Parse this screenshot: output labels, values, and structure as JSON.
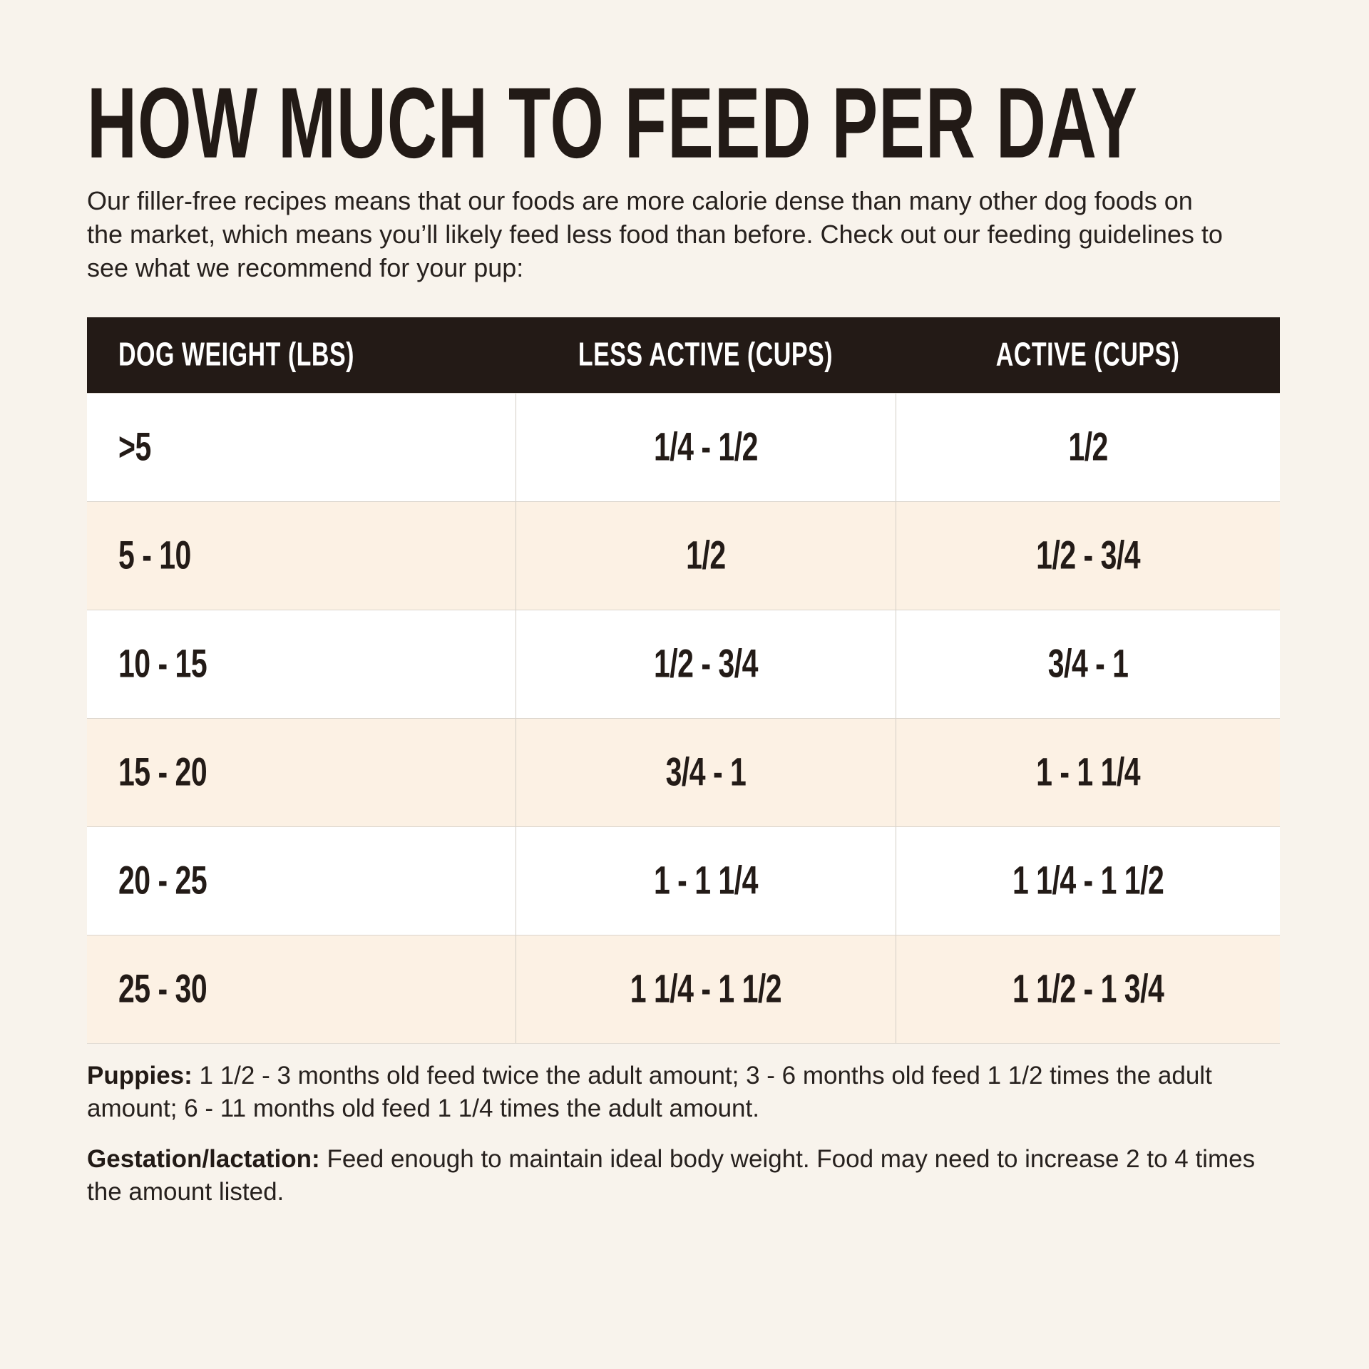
{
  "page": {
    "title": "HOW MUCH TO FEED PER DAY",
    "intro": "Our filler-free recipes means that our foods are more calorie dense than many other dog foods on the market, which means you’ll likely feed less food than before. Check out our feeding guidelines to see what we recommend for your pup:"
  },
  "table": {
    "columns": [
      "DOG WEIGHT (LBS)",
      "LESS ACTIVE (CUPS)",
      "ACTIVE (CUPS)"
    ],
    "rows": [
      {
        "weight": ">5",
        "less_active": "1/4 - 1/2",
        "active": "1/2"
      },
      {
        "weight": "5 - 10",
        "less_active": "1/2",
        "active": "1/2 - 3/4"
      },
      {
        "weight": "10 - 15",
        "less_active": "1/2 - 3/4",
        "active": "3/4 - 1"
      },
      {
        "weight": "15 - 20",
        "less_active": "3/4 - 1",
        "active": "1 - 1 1/4"
      },
      {
        "weight": "20 - 25",
        "less_active": "1 - 1 1/4",
        "active": "1 1/4 - 1 1/2"
      },
      {
        "weight": "25 - 30",
        "less_active": "1 1/4 - 1 1/2",
        "active": "1 1/2 - 1 3/4"
      }
    ]
  },
  "notes": [
    {
      "label": "Puppies:",
      "text": " 1 1/2 - 3 months old feed twice the adult amount; 3 - 6 months old feed 1 1/2 times the adult amount; 6 - 11 months old feed 1 1/4 times the adult amount."
    },
    {
      "label": "Gestation/lactation:",
      "text": " Feed enough to maintain ideal body weight. Food may need to increase 2 to 4 times the amount listed."
    }
  ],
  "colors": {
    "page_bg": "#f8f3ec",
    "header_bg": "#231a16",
    "row_cream": "#fcf1e4",
    "row_white": "#ffffff",
    "text": "#251d19"
  }
}
